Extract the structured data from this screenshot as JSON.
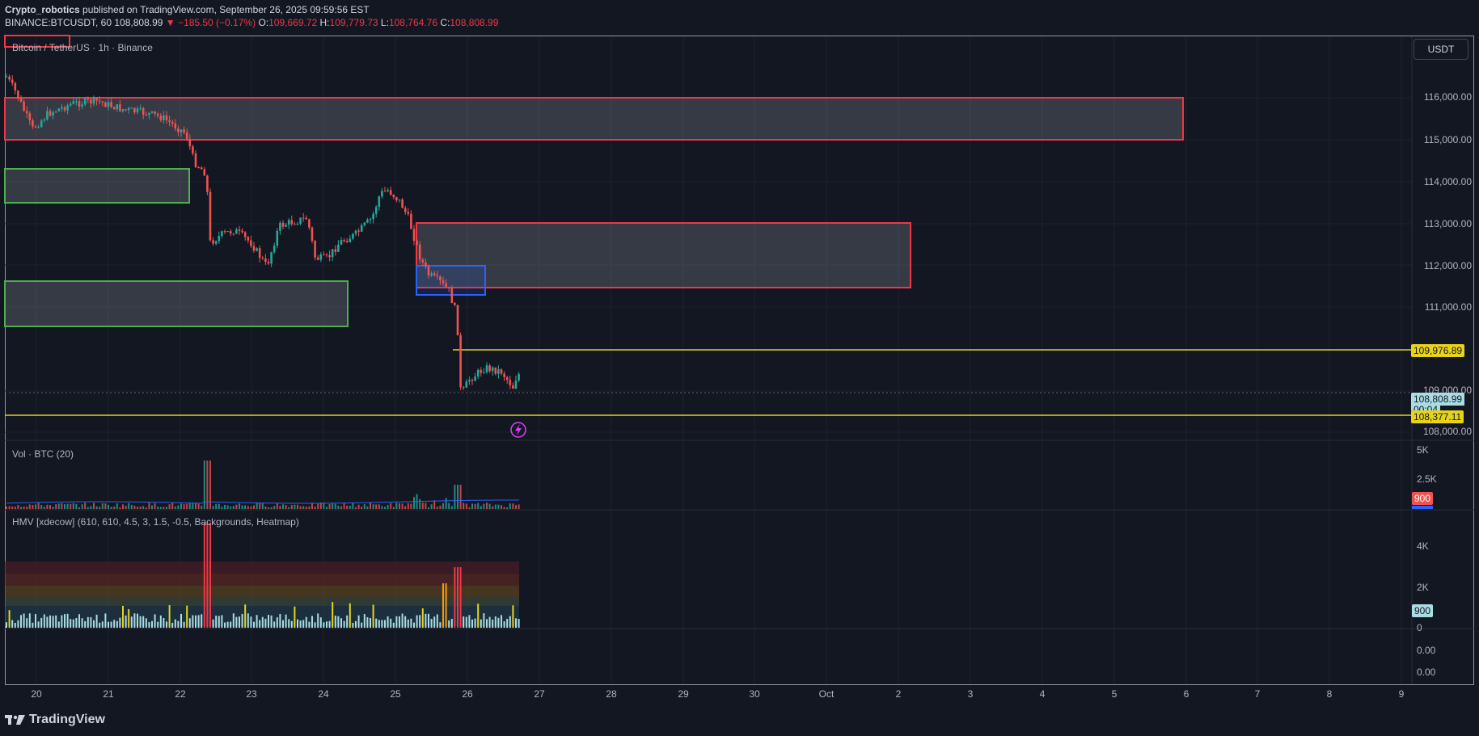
{
  "header": {
    "publisher": "Crypto_robotics",
    "published_text": "published on TradingView.com, September 26, 2025 09:59:56 EST",
    "symbol": "BINANCE:BTCUSDT, 60",
    "last_price": "108,808.99",
    "change": "−185.50 (−0.17%)",
    "open_label": "O:",
    "open": "109,669.72",
    "high_label": "H:",
    "high": "109,779.73",
    "low_label": "L:",
    "low": "108,764.76",
    "close_label": "C:",
    "close": "108,808.99"
  },
  "main_pane": {
    "title": "Bitcoin / TetherUS · 1h · Binance",
    "currency_button": "USDT",
    "price_axis": [
      "116,000.00",
      "115,000.00",
      "114,000.00",
      "113,000.00",
      "112,000.00",
      "111,000.00",
      "109,000.00",
      "108,000.00"
    ],
    "badges": {
      "level_high": "109,976.89",
      "last_price": "108,808.99",
      "countdown": "00:04",
      "level_low": "108,377.11"
    }
  },
  "volume_pane": {
    "title": "Vol · BTC (20)",
    "axis": [
      "5K",
      "2.5K"
    ],
    "badge": "900"
  },
  "hmv_pane": {
    "title": "HMV [xdecow] (610, 610, 4.5, 3, 1.5, -0.5, Backgrounds, Heatmap)",
    "axis": [
      "4K",
      "2K",
      "0"
    ],
    "badge": "900"
  },
  "extra_pane": {
    "axis": [
      "0.00",
      "0.00"
    ]
  },
  "time_axis": [
    "20",
    "21",
    "22",
    "23",
    "24",
    "25",
    "26",
    "27",
    "28",
    "29",
    "30",
    "Oct",
    "2",
    "3",
    "4",
    "5",
    "6",
    "7",
    "8",
    "9"
  ],
  "footer": {
    "logo_text": "TradingView"
  },
  "colors": {
    "background": "#131722",
    "bull": "#26a69a",
    "bear": "#ef5350",
    "zone_red": "#f23645",
    "zone_green": "#4caf50",
    "zone_blue": "#2962ff",
    "level_line": "#e8d31a"
  }
}
